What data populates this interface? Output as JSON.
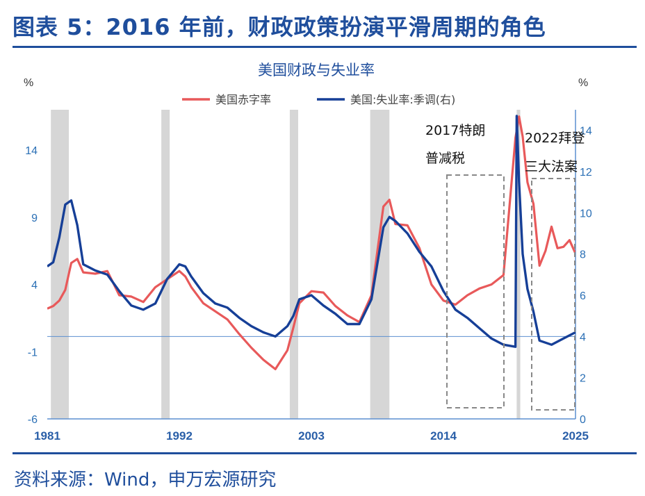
{
  "figure_title": "图表 5：2016 年前，财政政策扮演平滑周期的角色",
  "source_note": "资料来源：Wind，申万宏源研究",
  "chart_data": {
    "type": "line",
    "title": "美国财政与失业率",
    "left_unit": "%",
    "right_unit": "%",
    "x_tick_labels": [
      "1981",
      "1992",
      "2003",
      "2014",
      "2025"
    ],
    "x_range": [
      1981,
      2025
    ],
    "left_axis": {
      "range": [
        -6,
        17
      ],
      "tick_labels": [
        "-6",
        "-1",
        "4",
        "9",
        "14"
      ]
    },
    "right_axis": {
      "range": [
        0,
        15
      ],
      "tick_labels": [
        "0",
        "2",
        "4",
        "6",
        "8",
        "10",
        "12",
        "14"
      ]
    },
    "recessions": [
      [
        1981.3,
        1982.8
      ],
      [
        1990.5,
        1991.2
      ],
      [
        2001.2,
        2001.9
      ],
      [
        2007.9,
        2009.5
      ],
      [
        2020.1,
        2020.4
      ]
    ],
    "series": [
      {
        "name": "美国赤字率",
        "axis": "left",
        "color": "#e8595a",
        "x": [
          1981,
          1981.5,
          1982,
          1982.5,
          1983,
          1983.5,
          1984,
          1985,
          1986,
          1987,
          1988,
          1989,
          1990,
          1991,
          1992,
          1992.5,
          1993,
          1994,
          1995,
          1996,
          1997,
          1998,
          1999,
          2000,
          2001,
          2001.5,
          2002,
          2003,
          2004,
          2005,
          2006,
          2007,
          2008,
          2009,
          2009.5,
          2010,
          2011,
          2012,
          2013,
          2014,
          2015,
          2016,
          2017,
          2018,
          2019,
          2020,
          2020.3,
          2020.6,
          2021,
          2021.5,
          2022,
          2022.5,
          2023,
          2023.5,
          2024,
          2024.5,
          2025
        ],
        "values": [
          2.2,
          2.4,
          2.8,
          3.6,
          5.6,
          5.9,
          4.9,
          4.8,
          5.0,
          3.2,
          3.1,
          2.7,
          3.8,
          4.4,
          5.0,
          4.6,
          3.8,
          2.6,
          2.0,
          1.4,
          0.3,
          -0.7,
          -1.6,
          -2.3,
          -0.9,
          0.8,
          2.6,
          3.5,
          3.4,
          2.4,
          1.7,
          1.2,
          3.2,
          9.8,
          10.3,
          8.5,
          8.4,
          6.7,
          4.0,
          2.8,
          2.5,
          3.2,
          3.7,
          4.0,
          4.7,
          14.9,
          16.5,
          15.0,
          11.6,
          10.0,
          5.4,
          6.5,
          8.3,
          6.7,
          6.8,
          7.3,
          6.3
        ]
      },
      {
        "name": "美国:失业率:季调(右)",
        "axis": "right",
        "color": "#163f97",
        "x": [
          1981,
          1981.5,
          1982,
          1982.5,
          1983,
          1983.5,
          1984,
          1985,
          1986,
          1987,
          1988,
          1989,
          1990,
          1991,
          1992,
          1992.5,
          1993,
          1994,
          1995,
          1996,
          1997,
          1998,
          1999,
          2000,
          2001,
          2001.5,
          2002,
          2003,
          2004,
          2005,
          2006,
          2007,
          2008,
          2009,
          2009.5,
          2010,
          2011,
          2012,
          2013,
          2014,
          2015,
          2016,
          2017,
          2018,
          2019,
          2020,
          2020.1,
          2020.3,
          2020.6,
          2021,
          2021.5,
          2022,
          2023,
          2024,
          2025
        ],
        "values": [
          7.4,
          7.6,
          8.8,
          10.4,
          10.6,
          9.4,
          7.5,
          7.2,
          7.0,
          6.2,
          5.5,
          5.3,
          5.6,
          6.8,
          7.5,
          7.4,
          6.9,
          6.1,
          5.6,
          5.4,
          4.9,
          4.5,
          4.2,
          4.0,
          4.5,
          5.0,
          5.8,
          6.0,
          5.5,
          5.1,
          4.6,
          4.6,
          5.8,
          9.3,
          9.8,
          9.6,
          9.0,
          8.1,
          7.4,
          6.2,
          5.3,
          4.9,
          4.4,
          3.9,
          3.6,
          3.5,
          14.7,
          11.5,
          8.0,
          6.3,
          5.2,
          3.8,
          3.6,
          3.9,
          4.2
        ]
      }
    ],
    "annotations": [
      {
        "lines": [
          "2017特朗",
          "普减税"
        ]
      },
      {
        "lines": [
          "2022拜登",
          "三大法案"
        ]
      }
    ]
  }
}
